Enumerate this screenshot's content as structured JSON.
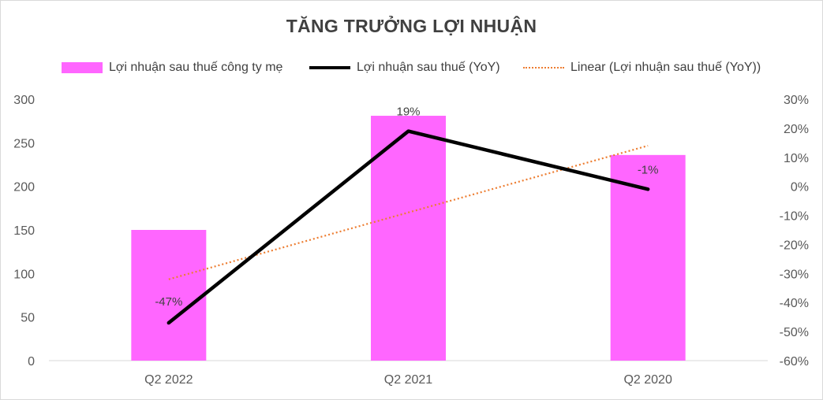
{
  "chart_data": {
    "type": "bar",
    "title": "TĂNG TRƯỞNG LỢI NHUẬN",
    "categories": [
      "Q2 2022",
      "Q2 2021",
      "Q2 2020"
    ],
    "series": [
      {
        "name": "Lợi nhuận sau thuế công ty mẹ",
        "type": "bar",
        "axis": "left",
        "color": "#ff66ff",
        "values": [
          150,
          281,
          236
        ]
      },
      {
        "name": "Lợi nhuận sau thuế (YoY)",
        "type": "line",
        "axis": "right",
        "color": "#000000",
        "values": [
          -0.47,
          0.19,
          -0.01
        ],
        "data_labels": [
          "-47%",
          "19%",
          "-1%"
        ]
      },
      {
        "name": "Linear (Lợi nhuận sau thuế (YoY))",
        "type": "trendline",
        "axis": "right",
        "color": "#ed7d31",
        "values": [
          -0.32,
          -0.09,
          0.14
        ]
      }
    ],
    "y_left": {
      "ylim": [
        0,
        300
      ],
      "ticks": [
        "0",
        "50",
        "100",
        "150",
        "200",
        "250",
        "300"
      ],
      "tick_values": [
        0,
        50,
        100,
        150,
        200,
        250,
        300
      ]
    },
    "y_right": {
      "ylim": [
        -0.6,
        0.3
      ],
      "ticks": [
        "-60%",
        "-50%",
        "-40%",
        "-30%",
        "-20%",
        "-10%",
        "0%",
        "10%",
        "20%",
        "30%"
      ],
      "tick_values": [
        -0.6,
        -0.5,
        -0.4,
        -0.3,
        -0.2,
        -0.1,
        0,
        0.1,
        0.2,
        0.3
      ]
    },
    "legend_position": "top",
    "grid": false
  }
}
